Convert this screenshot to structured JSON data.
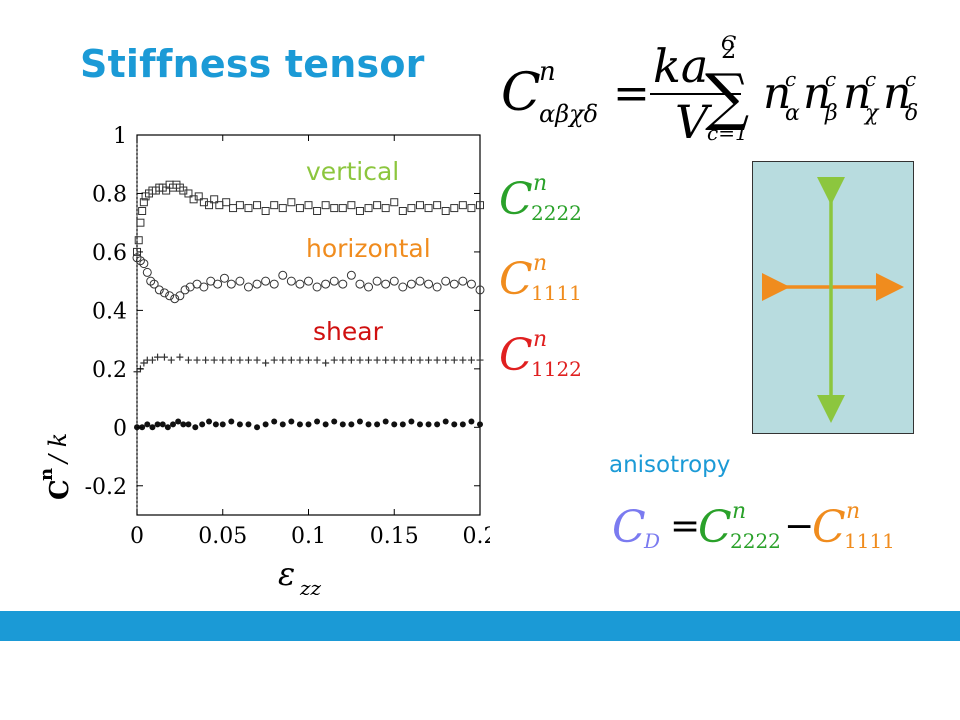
{
  "slide": {
    "title": "Stiffness tensor",
    "anisotropy_label": "anisotropy",
    "footer_bar_color": "#1b9ad6"
  },
  "formula_main": {
    "lhs": "C",
    "lhs_sup": "n",
    "lhs_sub": "αβχδ",
    "numerator": "ka",
    "numerator_sup": "2",
    "denominator": "V",
    "sum_upper": "C",
    "sum_lower": "c=1",
    "term_base": "n",
    "term_sup": "c",
    "term_subs": [
      "α",
      "β",
      "χ",
      "δ"
    ]
  },
  "component_labels": [
    {
      "base": "C",
      "sup": "n",
      "sub": "2222",
      "color": "#2aa12a"
    },
    {
      "base": "C",
      "sup": "n",
      "sub": "1111",
      "color": "#f08c1e"
    },
    {
      "base": "C",
      "sup": "n",
      "sub": "1122",
      "color": "#e02020"
    }
  ],
  "formula_anisotropy": {
    "lhs_base": "C",
    "lhs_sub": "D",
    "lhs_color": "#7b7bf0",
    "eq": "=",
    "t1_base": "C",
    "t1_sup": "n",
    "t1_sub": "2222",
    "t1_color": "#2aa12a",
    "minus": "−",
    "t2_base": "C",
    "t2_sup": "n",
    "t2_sub": "1111",
    "t2_color": "#f08c1e"
  },
  "diagram": {
    "box_color": "#b8dcdf",
    "vertical_arrow_color": "#8cc63e",
    "horizontal_arrow_color": "#f08c1e"
  },
  "chart_data": {
    "type": "scatter",
    "ylabel_main": "C",
    "ylabel_sup": "n",
    "ylabel_rest": " / k",
    "xlabel_main": "ε",
    "xlabel_sub": "zz",
    "xlim": [
      0,
      0.2
    ],
    "ylim": [
      -0.3,
      1.0
    ],
    "x_ticks": [
      "0",
      "0.05",
      "0.1",
      "0.15",
      "0.2"
    ],
    "x_tick_values": [
      0,
      0.05,
      0.1,
      0.15,
      0.2
    ],
    "y_ticks": [
      "1",
      "0.8",
      "0.6",
      "0.4",
      "0.2",
      "0",
      "-0.2"
    ],
    "y_tick_values": [
      1,
      0.8,
      0.6,
      0.4,
      0.2,
      0,
      -0.2
    ],
    "grid": false,
    "series": [
      {
        "name": "vertical",
        "label_color": "#8cc63e",
        "marker": "square",
        "points": [
          [
            0.0,
            0.6
          ],
          [
            0.001,
            0.64
          ],
          [
            0.002,
            0.7
          ],
          [
            0.003,
            0.74
          ],
          [
            0.004,
            0.77
          ],
          [
            0.005,
            0.79
          ],
          [
            0.007,
            0.8
          ],
          [
            0.009,
            0.81
          ],
          [
            0.011,
            0.81
          ],
          [
            0.013,
            0.82
          ],
          [
            0.015,
            0.82
          ],
          [
            0.017,
            0.81
          ],
          [
            0.019,
            0.83
          ],
          [
            0.021,
            0.82
          ],
          [
            0.023,
            0.83
          ],
          [
            0.025,
            0.82
          ],
          [
            0.027,
            0.81
          ],
          [
            0.03,
            0.8
          ],
          [
            0.033,
            0.78
          ],
          [
            0.036,
            0.79
          ],
          [
            0.039,
            0.77
          ],
          [
            0.042,
            0.76
          ],
          [
            0.045,
            0.78
          ],
          [
            0.048,
            0.76
          ],
          [
            0.052,
            0.77
          ],
          [
            0.056,
            0.75
          ],
          [
            0.06,
            0.76
          ],
          [
            0.065,
            0.75
          ],
          [
            0.07,
            0.76
          ],
          [
            0.075,
            0.74
          ],
          [
            0.08,
            0.76
          ],
          [
            0.085,
            0.75
          ],
          [
            0.09,
            0.77
          ],
          [
            0.095,
            0.75
          ],
          [
            0.1,
            0.76
          ],
          [
            0.105,
            0.74
          ],
          [
            0.11,
            0.76
          ],
          [
            0.115,
            0.75
          ],
          [
            0.12,
            0.75
          ],
          [
            0.125,
            0.76
          ],
          [
            0.13,
            0.74
          ],
          [
            0.135,
            0.75
          ],
          [
            0.14,
            0.76
          ],
          [
            0.145,
            0.75
          ],
          [
            0.15,
            0.77
          ],
          [
            0.155,
            0.74
          ],
          [
            0.16,
            0.75
          ],
          [
            0.165,
            0.76
          ],
          [
            0.17,
            0.75
          ],
          [
            0.175,
            0.76
          ],
          [
            0.18,
            0.74
          ],
          [
            0.185,
            0.75
          ],
          [
            0.19,
            0.76
          ],
          [
            0.195,
            0.75
          ],
          [
            0.2,
            0.76
          ]
        ]
      },
      {
        "name": "horizontal",
        "label_color": "#f08c1e",
        "marker": "circle",
        "points": [
          [
            0.0,
            0.58
          ],
          [
            0.002,
            0.57
          ],
          [
            0.004,
            0.56
          ],
          [
            0.006,
            0.53
          ],
          [
            0.008,
            0.5
          ],
          [
            0.01,
            0.49
          ],
          [
            0.013,
            0.47
          ],
          [
            0.016,
            0.46
          ],
          [
            0.019,
            0.45
          ],
          [
            0.022,
            0.44
          ],
          [
            0.025,
            0.45
          ],
          [
            0.028,
            0.47
          ],
          [
            0.031,
            0.48
          ],
          [
            0.035,
            0.49
          ],
          [
            0.039,
            0.48
          ],
          [
            0.043,
            0.5
          ],
          [
            0.047,
            0.49
          ],
          [
            0.051,
            0.51
          ],
          [
            0.055,
            0.49
          ],
          [
            0.06,
            0.5
          ],
          [
            0.065,
            0.48
          ],
          [
            0.07,
            0.49
          ],
          [
            0.075,
            0.5
          ],
          [
            0.08,
            0.49
          ],
          [
            0.085,
            0.52
          ],
          [
            0.09,
            0.5
          ],
          [
            0.095,
            0.49
          ],
          [
            0.1,
            0.5
          ],
          [
            0.105,
            0.48
          ],
          [
            0.11,
            0.49
          ],
          [
            0.115,
            0.5
          ],
          [
            0.12,
            0.49
          ],
          [
            0.125,
            0.52
          ],
          [
            0.13,
            0.49
          ],
          [
            0.135,
            0.48
          ],
          [
            0.14,
            0.5
          ],
          [
            0.145,
            0.49
          ],
          [
            0.15,
            0.5
          ],
          [
            0.155,
            0.48
          ],
          [
            0.16,
            0.49
          ],
          [
            0.165,
            0.5
          ],
          [
            0.17,
            0.49
          ],
          [
            0.175,
            0.48
          ],
          [
            0.18,
            0.5
          ],
          [
            0.185,
            0.49
          ],
          [
            0.19,
            0.5
          ],
          [
            0.195,
            0.49
          ],
          [
            0.2,
            0.47
          ]
        ]
      },
      {
        "name": "shear",
        "label_color": "#d01010",
        "marker": "plus",
        "points": [
          [
            0.0,
            0.19
          ],
          [
            0.002,
            0.2
          ],
          [
            0.004,
            0.22
          ],
          [
            0.006,
            0.23
          ],
          [
            0.009,
            0.23
          ],
          [
            0.012,
            0.24
          ],
          [
            0.016,
            0.24
          ],
          [
            0.02,
            0.23
          ],
          [
            0.025,
            0.24
          ],
          [
            0.03,
            0.23
          ],
          [
            0.035,
            0.23
          ],
          [
            0.04,
            0.23
          ],
          [
            0.045,
            0.23
          ],
          [
            0.05,
            0.23
          ],
          [
            0.055,
            0.23
          ],
          [
            0.06,
            0.23
          ],
          [
            0.065,
            0.23
          ],
          [
            0.07,
            0.23
          ],
          [
            0.075,
            0.22
          ],
          [
            0.08,
            0.23
          ],
          [
            0.085,
            0.23
          ],
          [
            0.09,
            0.23
          ],
          [
            0.095,
            0.23
          ],
          [
            0.1,
            0.23
          ],
          [
            0.105,
            0.23
          ],
          [
            0.11,
            0.22
          ],
          [
            0.115,
            0.23
          ],
          [
            0.12,
            0.23
          ],
          [
            0.125,
            0.23
          ],
          [
            0.13,
            0.23
          ],
          [
            0.135,
            0.23
          ],
          [
            0.14,
            0.23
          ],
          [
            0.145,
            0.23
          ],
          [
            0.15,
            0.23
          ],
          [
            0.155,
            0.23
          ],
          [
            0.16,
            0.23
          ],
          [
            0.165,
            0.23
          ],
          [
            0.17,
            0.23
          ],
          [
            0.175,
            0.23
          ],
          [
            0.18,
            0.23
          ],
          [
            0.185,
            0.23
          ],
          [
            0.19,
            0.23
          ],
          [
            0.195,
            0.23
          ],
          [
            0.2,
            0.23
          ]
        ]
      },
      {
        "name": "",
        "marker": "dot",
        "points": [
          [
            0.0,
            0.0
          ],
          [
            0.003,
            0.0
          ],
          [
            0.006,
            0.01
          ],
          [
            0.009,
            0.0
          ],
          [
            0.012,
            0.01
          ],
          [
            0.015,
            0.01
          ],
          [
            0.018,
            0.0
          ],
          [
            0.021,
            0.01
          ],
          [
            0.024,
            0.02
          ],
          [
            0.027,
            0.01
          ],
          [
            0.03,
            0.01
          ],
          [
            0.034,
            0.0
          ],
          [
            0.038,
            0.01
          ],
          [
            0.042,
            0.02
          ],
          [
            0.046,
            0.01
          ],
          [
            0.05,
            0.01
          ],
          [
            0.055,
            0.02
          ],
          [
            0.06,
            0.01
          ],
          [
            0.065,
            0.01
          ],
          [
            0.07,
            0.0
          ],
          [
            0.075,
            0.01
          ],
          [
            0.08,
            0.02
          ],
          [
            0.085,
            0.01
          ],
          [
            0.09,
            0.02
          ],
          [
            0.095,
            0.01
          ],
          [
            0.1,
            0.01
          ],
          [
            0.105,
            0.02
          ],
          [
            0.11,
            0.01
          ],
          [
            0.115,
            0.02
          ],
          [
            0.12,
            0.01
          ],
          [
            0.125,
            0.01
          ],
          [
            0.13,
            0.02
          ],
          [
            0.135,
            0.01
          ],
          [
            0.14,
            0.01
          ],
          [
            0.145,
            0.02
          ],
          [
            0.15,
            0.01
          ],
          [
            0.155,
            0.01
          ],
          [
            0.16,
            0.02
          ],
          [
            0.165,
            0.01
          ],
          [
            0.17,
            0.01
          ],
          [
            0.175,
            0.01
          ],
          [
            0.18,
            0.02
          ],
          [
            0.185,
            0.01
          ],
          [
            0.19,
            0.01
          ],
          [
            0.195,
            0.02
          ],
          [
            0.2,
            0.01
          ]
        ]
      }
    ]
  }
}
